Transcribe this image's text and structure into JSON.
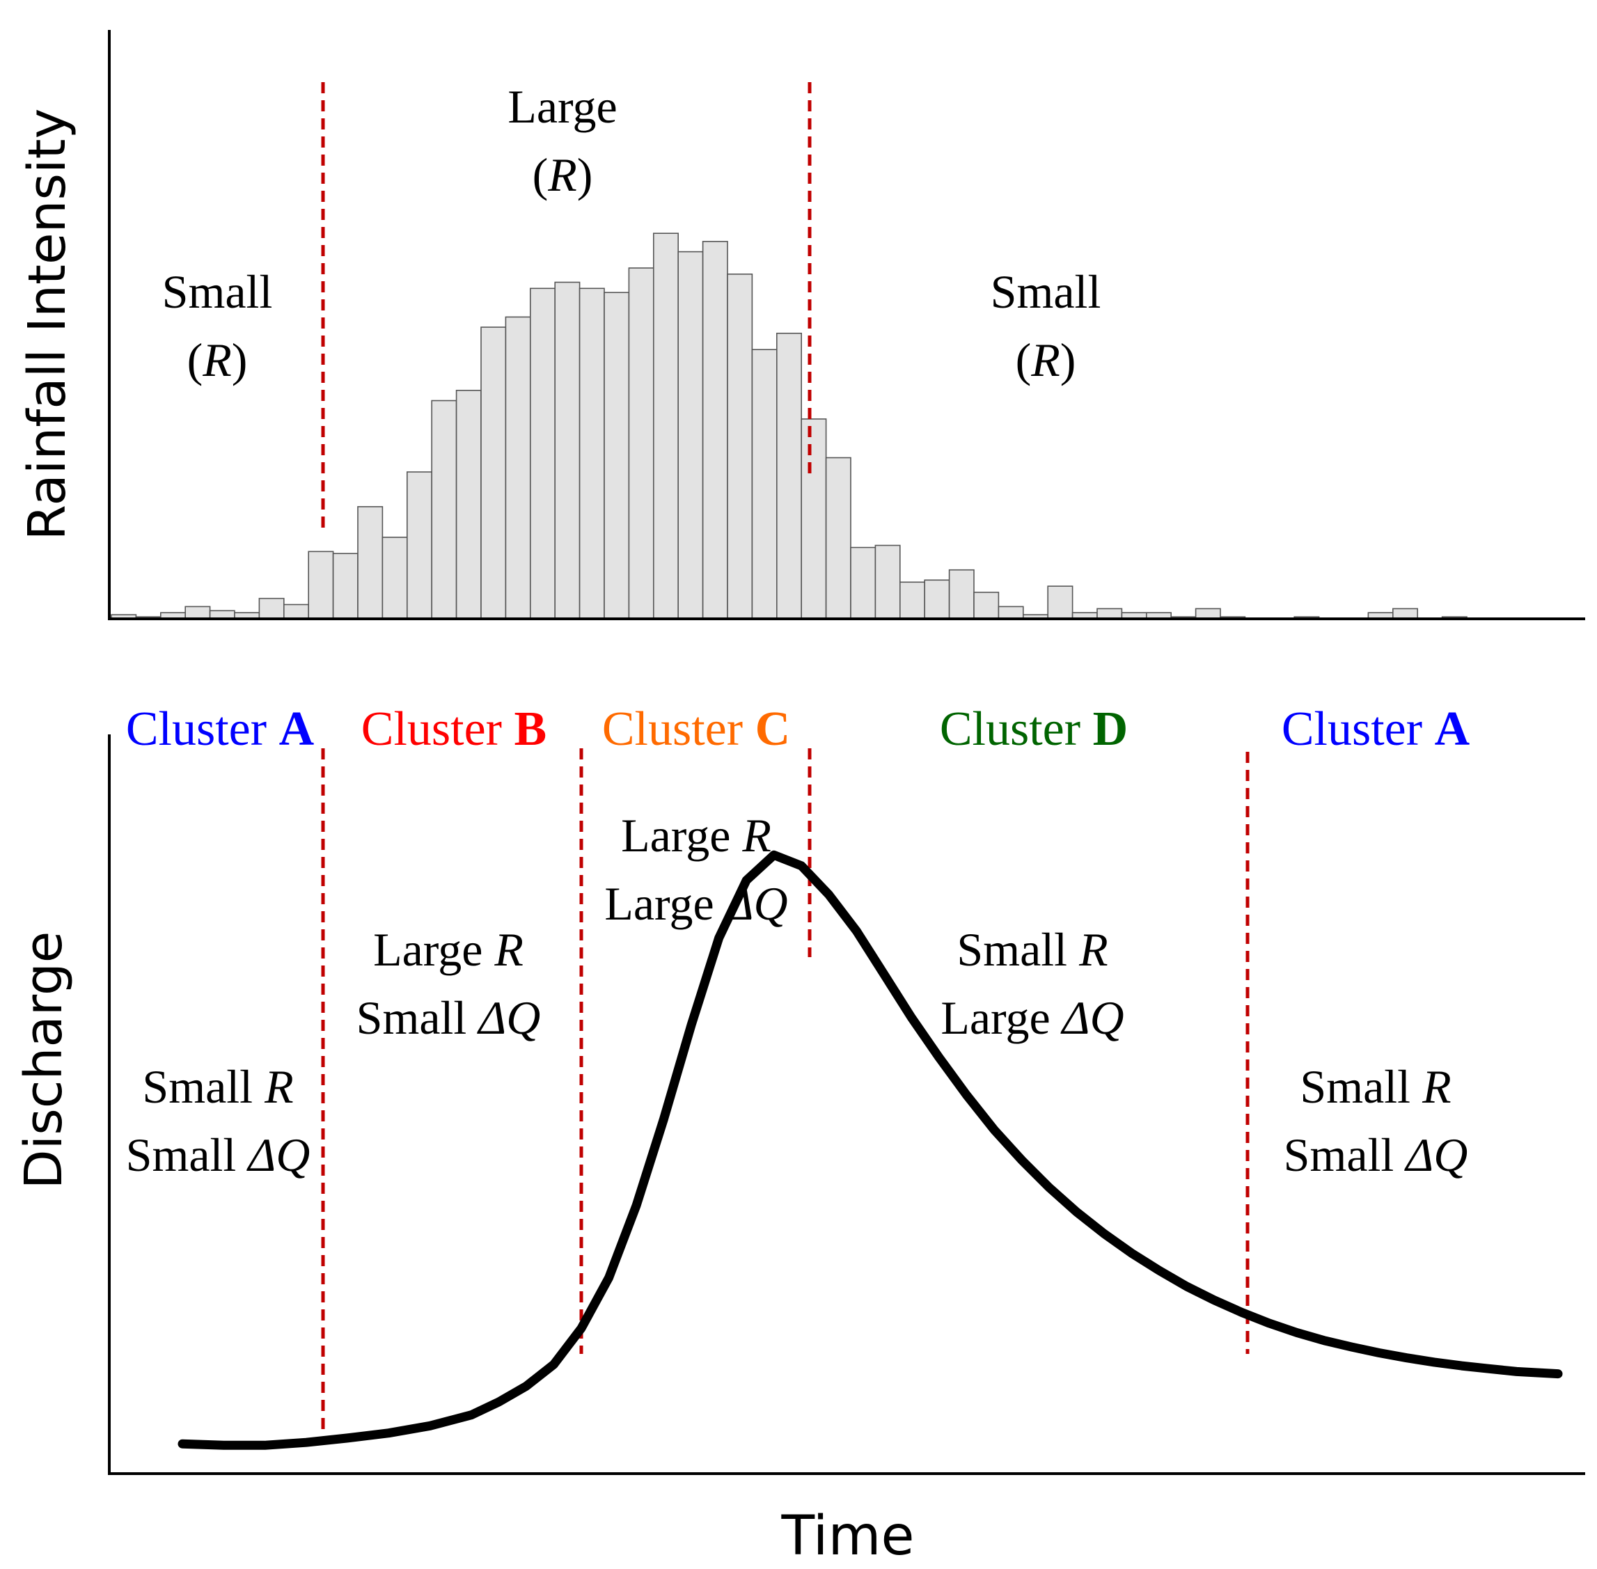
{
  "top_panel": {
    "ylabel": "Rainfall Intensity",
    "bars": [
      2,
      1,
      3,
      6,
      4,
      3,
      10,
      7,
      33,
      32,
      55,
      40,
      72,
      107,
      112,
      143,
      148,
      162,
      165,
      162,
      160,
      172,
      189,
      180,
      185,
      169,
      132,
      140,
      98,
      79,
      35,
      36,
      18,
      19,
      24,
      13,
      6,
      2,
      16,
      3,
      5,
      3,
      3,
      1,
      5,
      1,
      0,
      0,
      1,
      0,
      0,
      3,
      5,
      0,
      1,
      0,
      0,
      0
    ],
    "bar_count": 58,
    "regions": [
      {
        "line1": "Small",
        "r": "R"
      },
      {
        "line1": "Large",
        "r": "R"
      },
      {
        "line1": "Small",
        "r": "R"
      }
    ]
  },
  "bottom_panel": {
    "ylabel": "Discharge",
    "xlabel": "Time",
    "clusters": [
      {
        "word": "Cluster",
        "letter": "A",
        "color": "#0000ff",
        "r_size": "Small",
        "r_var": "R",
        "dq_size": "Small",
        "dq_var": "ΔQ"
      },
      {
        "word": "Cluster",
        "letter": "B",
        "color": "#ff0000",
        "r_size": "Large",
        "r_var": "R",
        "dq_size": "Small",
        "dq_var": "ΔQ"
      },
      {
        "word": "Cluster",
        "letter": "C",
        "color": "#ff6a00",
        "r_size": "Large",
        "r_var": "R",
        "dq_size": "Large",
        "dq_var": "ΔQ"
      },
      {
        "word": "Cluster",
        "letter": "D",
        "color": "#006400",
        "r_size": "Small",
        "r_var": "R",
        "dq_size": "Large",
        "dq_var": "ΔQ"
      },
      {
        "word": "Cluster",
        "letter": "A",
        "color": "#0000ff",
        "r_size": "Small",
        "r_var": "R",
        "dq_size": "Small",
        "dq_var": "ΔQ"
      }
    ],
    "hydrograph": [
      [
        0,
        0.02
      ],
      [
        0.03,
        0.018
      ],
      [
        0.06,
        0.018
      ],
      [
        0.09,
        0.022
      ],
      [
        0.12,
        0.028
      ],
      [
        0.15,
        0.035
      ],
      [
        0.18,
        0.045
      ],
      [
        0.21,
        0.06
      ],
      [
        0.23,
        0.078
      ],
      [
        0.25,
        0.1
      ],
      [
        0.27,
        0.13
      ],
      [
        0.29,
        0.18
      ],
      [
        0.31,
        0.25
      ],
      [
        0.33,
        0.35
      ],
      [
        0.35,
        0.47
      ],
      [
        0.37,
        0.6
      ],
      [
        0.39,
        0.72
      ],
      [
        0.41,
        0.8
      ],
      [
        0.43,
        0.835
      ],
      [
        0.45,
        0.82
      ],
      [
        0.47,
        0.78
      ],
      [
        0.49,
        0.73
      ],
      [
        0.51,
        0.67
      ],
      [
        0.53,
        0.61
      ],
      [
        0.55,
        0.555
      ],
      [
        0.57,
        0.503
      ],
      [
        0.59,
        0.455
      ],
      [
        0.61,
        0.413
      ],
      [
        0.63,
        0.375
      ],
      [
        0.65,
        0.341
      ],
      [
        0.67,
        0.311
      ],
      [
        0.69,
        0.284
      ],
      [
        0.71,
        0.26
      ],
      [
        0.73,
        0.238
      ],
      [
        0.75,
        0.219
      ],
      [
        0.77,
        0.202
      ],
      [
        0.79,
        0.187
      ],
      [
        0.81,
        0.174
      ],
      [
        0.83,
        0.163
      ],
      [
        0.85,
        0.154
      ],
      [
        0.87,
        0.146
      ],
      [
        0.89,
        0.139
      ],
      [
        0.91,
        0.133
      ],
      [
        0.93,
        0.128
      ],
      [
        0.95,
        0.124
      ],
      [
        0.97,
        0.12
      ],
      [
        1.0,
        0.117
      ]
    ]
  },
  "colors": {
    "bar_fill": "#e3e3e3",
    "bar_stroke": "#555555",
    "divider": "#c00000",
    "curve": "#000000"
  }
}
